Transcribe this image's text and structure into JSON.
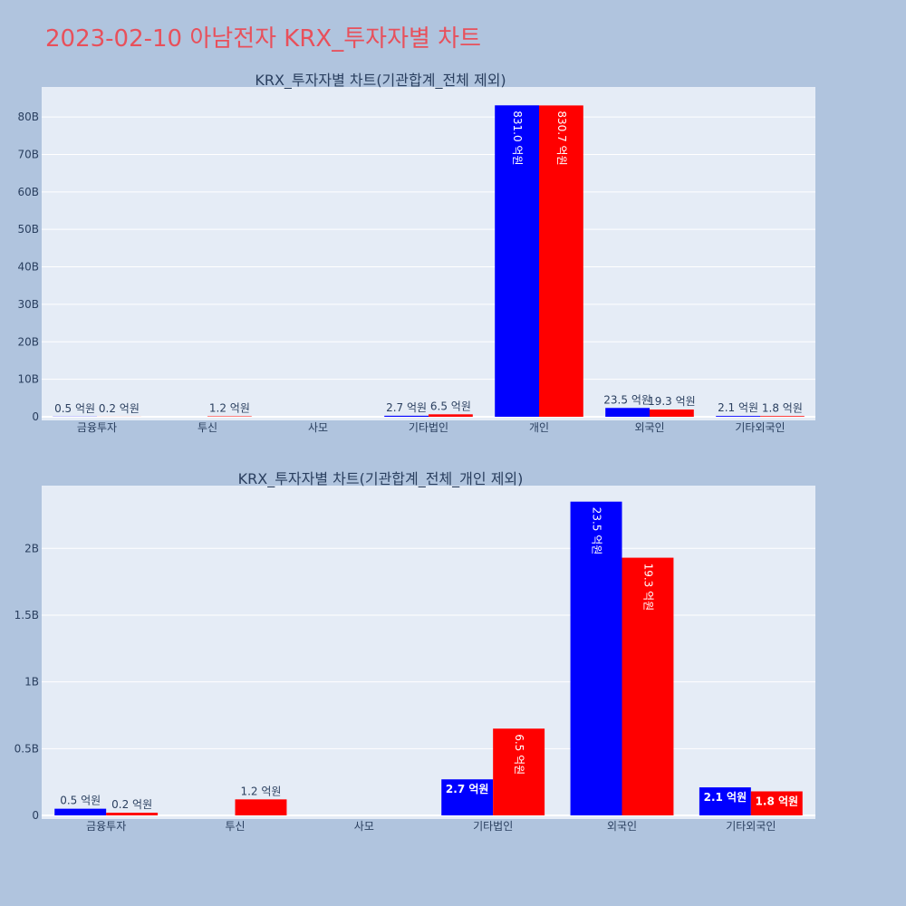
{
  "title": "2023-02-10 아남전자 KRX_투자자별 차트",
  "colors": {
    "series_a": "#0000ff",
    "series_b": "#ff0000",
    "plot_bg": "#e5ecf6",
    "page_bg": "#b0c4de",
    "title": "#e8505b"
  },
  "chart_data": [
    {
      "type": "bar",
      "title": "KRX_투자자별 차트(기관합계_전체 제외)",
      "categories": [
        "금융투자",
        "투신",
        "사모",
        "기타법인",
        "개인",
        "외국인",
        "기타외국인"
      ],
      "series": [
        {
          "values": [
            50000000,
            0,
            0,
            270000000,
            83100000000,
            2350000000,
            210000000
          ],
          "labels": [
            "0.5 억원",
            "",
            "",
            "2.7 억원",
            "831.0 억원",
            "23.5 억원",
            "2.1 억원"
          ]
        },
        {
          "values": [
            20000000,
            120000000,
            0,
            650000000,
            83070000000,
            1930000000,
            180000000
          ],
          "labels": [
            "0.2 억원",
            "1.2 억원",
            "",
            "6.5 억원",
            "830.7 억원",
            "19.3 억원",
            "1.8 억원"
          ]
        }
      ],
      "y_ticks": [
        "0",
        "10B",
        "20B",
        "30B",
        "40B",
        "50B",
        "60B",
        "70B",
        "80B"
      ],
      "y_tick_values": [
        0,
        10000000000,
        20000000000,
        30000000000,
        40000000000,
        50000000000,
        60000000000,
        70000000000,
        80000000000
      ],
      "ylim": [
        0,
        88000000000
      ],
      "grid": true,
      "legend": false
    },
    {
      "type": "bar",
      "title": "KRX_투자자별 차트(기관합계_전체_개인 제외)",
      "categories": [
        "금융투자",
        "투신",
        "사모",
        "기타법인",
        "외국인",
        "기타외국인"
      ],
      "series": [
        {
          "values": [
            50000000,
            0,
            0,
            270000000,
            2350000000,
            210000000
          ],
          "labels": [
            "0.5 억원",
            "",
            "",
            "2.7 억원",
            "23.5 억원",
            "2.1 억원"
          ]
        },
        {
          "values": [
            20000000,
            120000000,
            0,
            650000000,
            1930000000,
            180000000
          ],
          "labels": [
            "0.2 억원",
            "1.2 억원",
            "",
            "6.5 억원",
            "19.3 억원",
            "1.8 억원"
          ]
        }
      ],
      "y_ticks": [
        "0",
        "0.5B",
        "1B",
        "1.5B",
        "2B"
      ],
      "y_tick_values": [
        0,
        500000000,
        1000000000,
        1500000000,
        2000000000
      ],
      "ylim": [
        0,
        2470000000
      ],
      "grid": true,
      "legend": false
    }
  ]
}
